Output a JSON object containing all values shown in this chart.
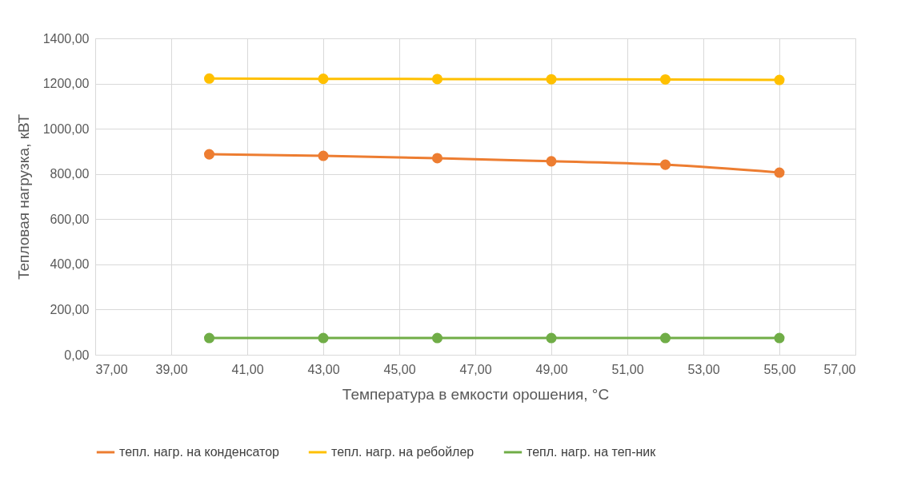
{
  "chart_data": {
    "type": "line",
    "xlabel": "Температура в емкости орошения, °C",
    "ylabel": "Тепловая нагрузка, кВТ",
    "x": [
      40,
      43,
      46,
      49,
      52,
      55
    ],
    "series": [
      {
        "name": "тепл. нагр. на конденсатор",
        "color": "#ed7d31",
        "values": [
          887,
          880,
          870,
          856,
          841,
          806
        ]
      },
      {
        "name": "тепл. нагр. на ребойлер",
        "color": "#ffc000",
        "values": [
          1222,
          1221,
          1220,
          1219,
          1218,
          1216
        ]
      },
      {
        "name": "тепл. нагр. на теп-ник",
        "color": "#70ad47",
        "values": [
          74,
          74,
          74,
          74,
          74,
          74
        ]
      }
    ],
    "xlim": [
      37,
      57
    ],
    "xticks": [
      {
        "value": 37,
        "label": "37,00"
      },
      {
        "value": 39,
        "label": "39,00"
      },
      {
        "value": 41,
        "label": "41,00"
      },
      {
        "value": 43,
        "label": "43,00"
      },
      {
        "value": 45,
        "label": "45,00"
      },
      {
        "value": 47,
        "label": "47,00"
      },
      {
        "value": 49,
        "label": "49,00"
      },
      {
        "value": 51,
        "label": "51,00"
      },
      {
        "value": 53,
        "label": "53,00"
      },
      {
        "value": 55,
        "label": "55,00"
      },
      {
        "value": 57,
        "label": "57,00"
      }
    ],
    "ylim": [
      0,
      1400
    ],
    "yticks": [
      {
        "value": 0,
        "label": "0,00"
      },
      {
        "value": 200,
        "label": "200,00"
      },
      {
        "value": 400,
        "label": "400,00"
      },
      {
        "value": 600,
        "label": "600,00"
      },
      {
        "value": 800,
        "label": "800,00"
      },
      {
        "value": 1000,
        "label": "1000,00"
      },
      {
        "value": 1200,
        "label": "1200,00"
      },
      {
        "value": 1400,
        "label": "1400,00"
      }
    ],
    "grid": true,
    "legend": "bottom",
    "marker": "circle",
    "line_style": "solid"
  }
}
